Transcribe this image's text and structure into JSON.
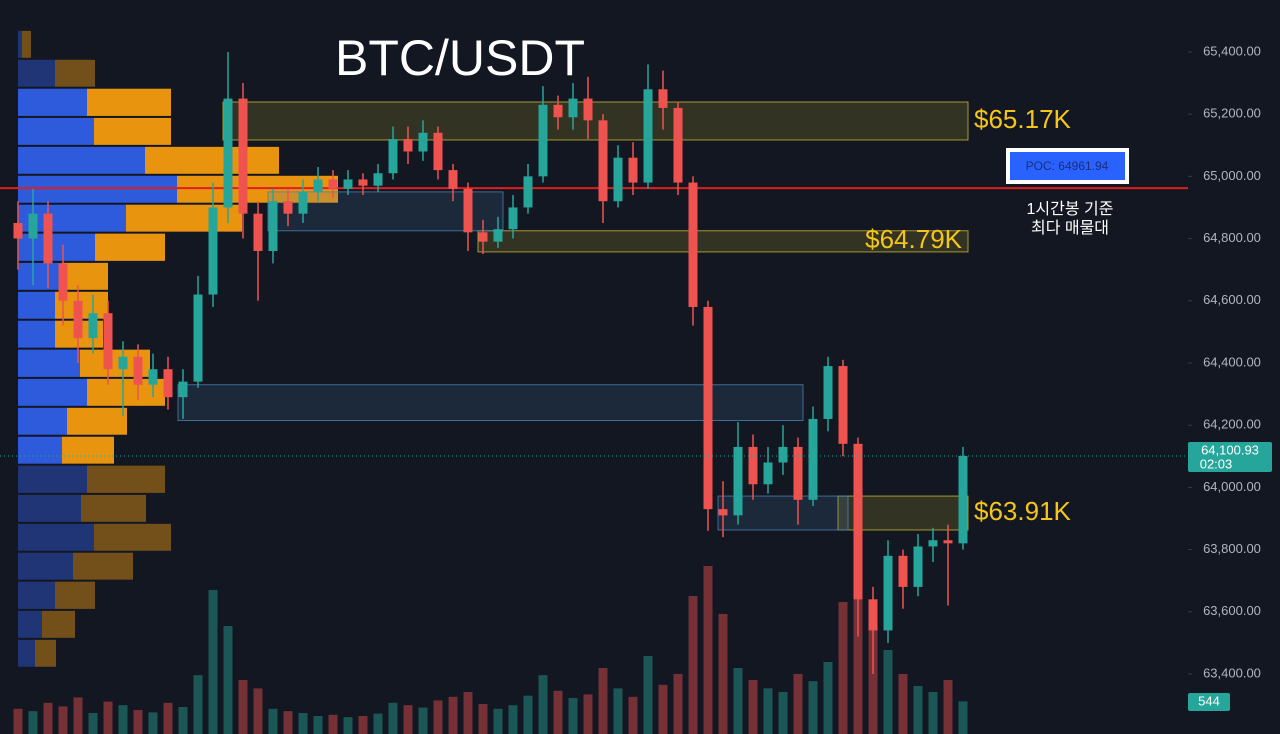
{
  "chart_data": {
    "type": "candlestick",
    "title": "BTC/USDT",
    "up_color": "#26a69a",
    "down_color": "#ef5350",
    "ylim": [
      63207,
      65567
    ],
    "yticks": [
      {
        "value": 63400,
        "label": "63,400.00"
      },
      {
        "value": 63600,
        "label": "63,600.00"
      },
      {
        "value": 63800,
        "label": "63,800.00"
      },
      {
        "value": 64000,
        "label": "64,000.00"
      },
      {
        "value": 64200,
        "label": "64,200.00"
      },
      {
        "value": 64400,
        "label": "64,400.00"
      },
      {
        "value": 64600,
        "label": "64,600.00"
      },
      {
        "value": 64800,
        "label": "64,800.00"
      },
      {
        "value": 65000,
        "label": "65,000.00"
      },
      {
        "value": 65200,
        "label": "65,200.00"
      },
      {
        "value": 65400,
        "label": "65,400.00"
      }
    ],
    "open": [
      64850,
      64800,
      64880,
      64720,
      64600,
      64480,
      64560,
      64380,
      64420,
      64330,
      64380,
      64290,
      64340,
      64620,
      64900,
      65250,
      64880,
      64760,
      64920,
      64880,
      64950,
      64990,
      64960,
      64990,
      64970,
      65010,
      65120,
      65080,
      65140,
      65020,
      64960,
      64820,
      64790,
      64830,
      64900,
      65000,
      65230,
      65190,
      65250,
      65180,
      64920,
      65060,
      64980,
      65280,
      65220,
      64980,
      64580,
      63930,
      63910,
      64130,
      64010,
      64080,
      64130,
      63960,
      64220,
      64390,
      64140,
      63640,
      63540,
      63780,
      63680,
      63810,
      63830,
      63820
    ],
    "high": [
      64920,
      64960,
      64920,
      64780,
      64650,
      64620,
      64600,
      64470,
      64460,
      64430,
      64420,
      64380,
      64680,
      64980,
      65400,
      65300,
      64920,
      64960,
      64960,
      64990,
      65030,
      65020,
      65020,
      65010,
      65040,
      65160,
      65160,
      65180,
      65160,
      65040,
      64980,
      64860,
      64870,
      64940,
      65040,
      65290,
      65260,
      65300,
      65320,
      65200,
      65100,
      65110,
      65360,
      65340,
      65240,
      65000,
      64600,
      64020,
      64210,
      64170,
      64130,
      64200,
      64160,
      64260,
      64420,
      64410,
      64160,
      63680,
      63830,
      63800,
      63850,
      63870,
      63880,
      64130
    ],
    "low": [
      64700,
      64650,
      64640,
      64520,
      64400,
      64430,
      64330,
      64230,
      64280,
      64290,
      64250,
      64220,
      64320,
      64580,
      64850,
      64800,
      64600,
      64720,
      64840,
      64850,
      64920,
      64930,
      64940,
      64940,
      64950,
      64990,
      65040,
      65050,
      64990,
      64920,
      64760,
      64750,
      64770,
      64800,
      64880,
      64980,
      65150,
      65150,
      65120,
      64850,
      64900,
      64940,
      64960,
      65150,
      64940,
      64520,
      63860,
      63840,
      63880,
      63960,
      63980,
      64040,
      63880,
      63940,
      64180,
      64100,
      63520,
      63400,
      63500,
      63610,
      63650,
      63760,
      63620,
      63800
    ],
    "close": [
      64800,
      64880,
      64720,
      64600,
      64480,
      64560,
      64380,
      64420,
      64330,
      64380,
      64290,
      64340,
      64620,
      64900,
      65250,
      64880,
      64760,
      64920,
      64880,
      64950,
      64990,
      64960,
      64990,
      64970,
      65010,
      65120,
      65080,
      65140,
      65020,
      64960,
      64820,
      64790,
      64830,
      64900,
      65000,
      65230,
      65190,
      65250,
      65180,
      64920,
      65060,
      64980,
      65280,
      65220,
      64980,
      64580,
      63930,
      63910,
      64130,
      64010,
      64080,
      64130,
      63960,
      64220,
      64390,
      64140,
      63640,
      63540,
      63780,
      63680,
      63810,
      63830,
      63820,
      64100.93
    ],
    "volume": [
      420,
      380,
      520,
      460,
      610,
      350,
      540,
      480,
      400,
      360,
      520,
      450,
      980,
      2400,
      1800,
      900,
      760,
      420,
      380,
      350,
      300,
      320,
      280,
      300,
      340,
      520,
      480,
      440,
      560,
      620,
      700,
      500,
      420,
      480,
      640,
      980,
      720,
      600,
      660,
      1100,
      760,
      620,
      1300,
      820,
      1000,
      2300,
      2800,
      2000,
      1100,
      900,
      760,
      700,
      1000,
      880,
      1200,
      2200,
      2600,
      1900,
      1400,
      1000,
      800,
      700,
      900,
      544
    ],
    "vlim": [
      0,
      3000
    ],
    "last_price": {
      "label": "64,100.93",
      "countdown": "02:03"
    },
    "poc": {
      "value": 64961.94,
      "label": "POC: 64961.94",
      "color": "#e01e1e",
      "note": [
        "1시간봉 기준",
        "최다 매물대"
      ]
    },
    "zones": [
      {
        "low": 65117,
        "high": 65239,
        "from": 14,
        "to": 63,
        "color": "#c9b531",
        "label": "$65.17K"
      },
      {
        "low": 64757,
        "high": 64825,
        "from": 31,
        "to": 63,
        "color": "#c9b531",
        "label": "$64.79K",
        "label_inside": true
      },
      {
        "low": 63863,
        "high": 63972,
        "from": 55,
        "to": 63,
        "color": "#c9b531",
        "label": "$63.91K"
      },
      {
        "low": 64825,
        "high": 64950,
        "from": 17,
        "to": 32,
        "color": "#4a7fb0"
      },
      {
        "low": 64215,
        "high": 64330,
        "from": 11,
        "to": 52,
        "color": "#4a7fb0"
      },
      {
        "low": 63863,
        "high": 63972,
        "from": 47,
        "to": 55,
        "color": "#4a7fb0"
      }
    ],
    "volume_profile": {
      "bins": [
        65471,
        65378,
        65285,
        65191,
        65098,
        65005,
        64912,
        64819,
        64725,
        64632,
        64539,
        64446,
        64352,
        64259,
        64166,
        64073,
        63979,
        63886,
        63793,
        63700,
        63606,
        63513,
        63420
      ],
      "buy": [
        4,
        37,
        69,
        76,
        127,
        159,
        108,
        77,
        44,
        37,
        37,
        62,
        69,
        49,
        44,
        69,
        63,
        76,
        55,
        37,
        24,
        17
      ],
      "sell": [
        9,
        40,
        84,
        77,
        134,
        161,
        116,
        70,
        46,
        53,
        48,
        70,
        78,
        60,
        52,
        78,
        65,
        77,
        60,
        40,
        33,
        21
      ],
      "value_area": [
        64073,
        65285
      ],
      "buy_color": "#2e5bdc",
      "sell_color": "#e8940f"
    }
  }
}
